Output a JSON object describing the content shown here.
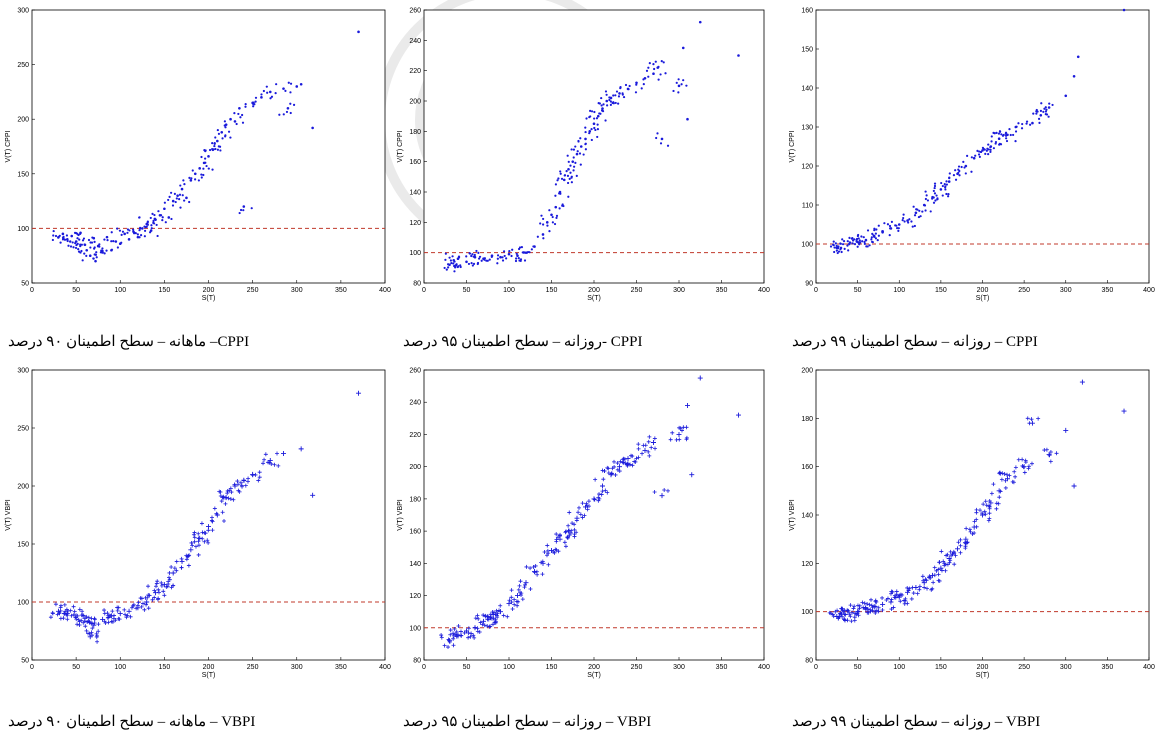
{
  "chart_data": [
    {
      "type": "scatter",
      "caption": "CPPI– ماهانه – سطح اطمینان ۹۰ درصد",
      "ylabel": "V(T) CPPI",
      "xlabel": "S(T)",
      "xlim": [
        0,
        400
      ],
      "ylim": [
        50,
        300
      ],
      "xticks": [
        0,
        50,
        100,
        150,
        200,
        250,
        300,
        350,
        400
      ],
      "yticks": [
        50,
        100,
        150,
        200,
        250,
        300
      ],
      "reference_line": 100,
      "marker": "dot",
      "points": [
        [
          30,
          92
        ],
        [
          35,
          95
        ],
        [
          40,
          90
        ],
        [
          45,
          93
        ],
        [
          50,
          88
        ],
        [
          55,
          96
        ],
        [
          60,
          85
        ],
        [
          62,
          80
        ],
        [
          66,
          75
        ],
        [
          70,
          91
        ],
        [
          72,
          70
        ],
        [
          75,
          84
        ],
        [
          80,
          78
        ],
        [
          85,
          92
        ],
        [
          90,
          80
        ],
        [
          95,
          88
        ],
        [
          100,
          86
        ],
        [
          105,
          95
        ],
        [
          110,
          90
        ],
        [
          115,
          97
        ],
        [
          120,
          92
        ],
        [
          125,
          100
        ],
        [
          130,
          104
        ],
        [
          135,
          98
        ],
        [
          140,
          108
        ],
        [
          145,
          112
        ],
        [
          150,
          118
        ],
        [
          155,
          110
        ],
        [
          160,
          125
        ],
        [
          165,
          130
        ],
        [
          170,
          136
        ],
        [
          175,
          128
        ],
        [
          180,
          144
        ],
        [
          185,
          150
        ],
        [
          190,
          155
        ],
        [
          195,
          160
        ],
        [
          200,
          166
        ],
        [
          205,
          172
        ],
        [
          210,
          180
        ],
        [
          215,
          188
        ],
        [
          220,
          195
        ],
        [
          225,
          200
        ],
        [
          230,
          198
        ],
        [
          235,
          210
        ],
        [
          240,
          120
        ],
        [
          250,
          215
        ],
        [
          260,
          220
        ],
        [
          270,
          225
        ],
        [
          285,
          228
        ],
        [
          290,
          210
        ],
        [
          300,
          230
        ],
        [
          305,
          232
        ],
        [
          318,
          192
        ],
        [
          370,
          280
        ]
      ]
    },
    {
      "type": "scatter",
      "caption": "CPPI -روزانه – سطح اطمینان ۹۵ درصد",
      "ylabel": "V(T) CPPI",
      "xlabel": "S(T)",
      "xlim": [
        0,
        400
      ],
      "ylim": [
        80,
        260
      ],
      "xticks": [
        0,
        50,
        100,
        150,
        200,
        250,
        300,
        350,
        400
      ],
      "yticks": [
        80,
        100,
        120,
        140,
        160,
        180,
        200,
        220,
        240,
        260
      ],
      "reference_line": 100,
      "marker": "dot",
      "points": [
        [
          30,
          92
        ],
        [
          35,
          95
        ],
        [
          40,
          96
        ],
        [
          50,
          94
        ],
        [
          60,
          97
        ],
        [
          70,
          96
        ],
        [
          80,
          98
        ],
        [
          90,
          97
        ],
        [
          100,
          99
        ],
        [
          110,
          98
        ],
        [
          120,
          100
        ],
        [
          130,
          104
        ],
        [
          140,
          112
        ],
        [
          145,
          120
        ],
        [
          150,
          125
        ],
        [
          155,
          130
        ],
        [
          160,
          140
        ],
        [
          165,
          148
        ],
        [
          170,
          155
        ],
        [
          175,
          160
        ],
        [
          180,
          165
        ],
        [
          185,
          170
        ],
        [
          190,
          175
        ],
        [
          195,
          180
        ],
        [
          200,
          185
        ],
        [
          205,
          190
        ],
        [
          210,
          195
        ],
        [
          215,
          200
        ],
        [
          220,
          202
        ],
        [
          230,
          205
        ],
        [
          240,
          208
        ],
        [
          250,
          212
        ],
        [
          260,
          215
        ],
        [
          270,
          218
        ],
        [
          275,
          222
        ],
        [
          280,
          175
        ],
        [
          300,
          210
        ],
        [
          305,
          235
        ],
        [
          310,
          188
        ],
        [
          325,
          252
        ],
        [
          370,
          230
        ]
      ]
    },
    {
      "type": "scatter",
      "caption": "CPPI – روزانه – سطح اطمینان ۹۹ درصد",
      "ylabel": "V(T) CPPI",
      "xlabel": "S(T)",
      "xlim": [
        0,
        400
      ],
      "ylim": [
        90,
        160
      ],
      "xticks": [
        0,
        50,
        100,
        150,
        200,
        250,
        300,
        350,
        400
      ],
      "yticks": [
        90,
        100,
        110,
        120,
        130,
        140,
        150,
        160
      ],
      "reference_line": 100,
      "marker": "dot",
      "points": [
        [
          25,
          99
        ],
        [
          30,
          99
        ],
        [
          40,
          100
        ],
        [
          50,
          100.5
        ],
        [
          60,
          101
        ],
        [
          70,
          102
        ],
        [
          80,
          103
        ],
        [
          90,
          104
        ],
        [
          100,
          105
        ],
        [
          110,
          106
        ],
        [
          120,
          108
        ],
        [
          130,
          110
        ],
        [
          140,
          112
        ],
        [
          150,
          114
        ],
        [
          160,
          116
        ],
        [
          170,
          118
        ],
        [
          180,
          120
        ],
        [
          190,
          122
        ],
        [
          200,
          124
        ],
        [
          210,
          125
        ],
        [
          220,
          127
        ],
        [
          230,
          128
        ],
        [
          240,
          130
        ],
        [
          260,
          131
        ],
        [
          270,
          133
        ],
        [
          280,
          135
        ],
        [
          300,
          138
        ],
        [
          310,
          143
        ],
        [
          315,
          148
        ],
        [
          370,
          160
        ]
      ]
    },
    {
      "type": "scatter",
      "caption": "VBPI – ماهانه – سطح اطمینان ۹۰ درصد",
      "ylabel": "V(T) VBPI",
      "xlabel": "S(T)",
      "xlim": [
        0,
        400
      ],
      "ylim": [
        50,
        300
      ],
      "xticks": [
        0,
        50,
        100,
        150,
        200,
        250,
        300,
        350,
        400
      ],
      "yticks": [
        50,
        100,
        150,
        200,
        250,
        300
      ],
      "reference_line": 100,
      "marker": "plus",
      "points": [
        [
          30,
          92
        ],
        [
          40,
          90
        ],
        [
          50,
          88
        ],
        [
          60,
          86
        ],
        [
          66,
          70
        ],
        [
          70,
          80
        ],
        [
          80,
          85
        ],
        [
          90,
          88
        ],
        [
          100,
          90
        ],
        [
          110,
          92
        ],
        [
          120,
          95
        ],
        [
          130,
          100
        ],
        [
          140,
          108
        ],
        [
          150,
          115
        ],
        [
          160,
          125
        ],
        [
          170,
          135
        ],
        [
          180,
          145
        ],
        [
          190,
          155
        ],
        [
          200,
          165
        ],
        [
          210,
          175
        ],
        [
          220,
          190
        ],
        [
          230,
          200
        ],
        [
          240,
          205
        ],
        [
          250,
          210
        ],
        [
          270,
          222
        ],
        [
          285,
          228
        ],
        [
          305,
          232
        ],
        [
          318,
          192
        ],
        [
          370,
          280
        ]
      ]
    },
    {
      "type": "scatter",
      "caption": "VBPI – روزانه – سطح اطمینان ۹۵ درصد",
      "ylabel": "V(T) VBPI",
      "xlabel": "S(T)",
      "xlim": [
        0,
        400
      ],
      "ylim": [
        80,
        260
      ],
      "xticks": [
        0,
        50,
        100,
        150,
        200,
        250,
        300,
        350,
        400
      ],
      "yticks": [
        80,
        100,
        120,
        140,
        160,
        180,
        200,
        220,
        240,
        260
      ],
      "reference_line": 100,
      "marker": "plus",
      "points": [
        [
          30,
          92
        ],
        [
          40,
          95
        ],
        [
          50,
          98
        ],
        [
          60,
          100
        ],
        [
          70,
          104
        ],
        [
          80,
          106
        ],
        [
          90,
          110
        ],
        [
          100,
          115
        ],
        [
          110,
          120
        ],
        [
          120,
          128
        ],
        [
          130,
          135
        ],
        [
          140,
          140
        ],
        [
          150,
          148
        ],
        [
          160,
          155
        ],
        [
          170,
          160
        ],
        [
          180,
          168
        ],
        [
          190,
          175
        ],
        [
          200,
          180
        ],
        [
          210,
          188
        ],
        [
          220,
          195
        ],
        [
          230,
          200
        ],
        [
          240,
          205
        ],
        [
          260,
          210
        ],
        [
          270,
          215
        ],
        [
          280,
          182
        ],
        [
          300,
          220
        ],
        [
          310,
          238
        ],
        [
          315,
          195
        ],
        [
          325,
          255
        ],
        [
          370,
          232
        ]
      ]
    },
    {
      "type": "scatter",
      "caption": "VBPI – روزانه – سطح اطمینان ۹۹ درصد",
      "ylabel": "V(T) VBPI",
      "xlabel": "S(T)",
      "xlim": [
        0,
        400
      ],
      "ylim": [
        80,
        200
      ],
      "xticks": [
        0,
        50,
        100,
        150,
        200,
        250,
        300,
        350,
        400
      ],
      "yticks": [
        80,
        100,
        120,
        140,
        160,
        180,
        200
      ],
      "reference_line": 100,
      "marker": "plus",
      "points": [
        [
          25,
          98
        ],
        [
          30,
          99
        ],
        [
          40,
          99
        ],
        [
          50,
          100
        ],
        [
          60,
          101
        ],
        [
          70,
          102
        ],
        [
          80,
          103
        ],
        [
          90,
          104
        ],
        [
          100,
          106
        ],
        [
          110,
          108
        ],
        [
          120,
          110
        ],
        [
          130,
          112
        ],
        [
          140,
          115
        ],
        [
          150,
          118
        ],
        [
          160,
          122
        ],
        [
          170,
          126
        ],
        [
          180,
          130
        ],
        [
          190,
          135
        ],
        [
          200,
          140
        ],
        [
          210,
          145
        ],
        [
          220,
          150
        ],
        [
          230,
          155
        ],
        [
          250,
          160
        ],
        [
          260,
          178
        ],
        [
          280,
          165
        ],
        [
          300,
          175
        ],
        [
          310,
          152
        ],
        [
          320,
          195
        ],
        [
          370,
          183
        ]
      ]
    }
  ]
}
